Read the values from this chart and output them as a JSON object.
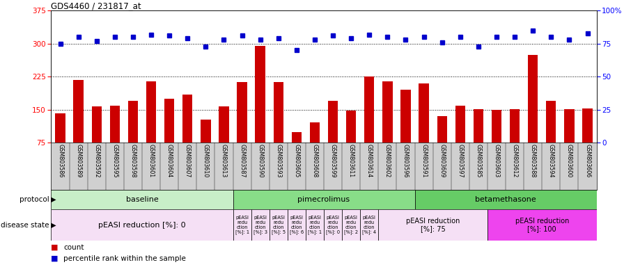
{
  "title": "GDS4460 / 231817_at",
  "samples": [
    "GSM803586",
    "GSM803589",
    "GSM803592",
    "GSM803595",
    "GSM803598",
    "GSM803601",
    "GSM803604",
    "GSM803607",
    "GSM803610",
    "GSM803613",
    "GSM803587",
    "GSM803590",
    "GSM803593",
    "GSM803605",
    "GSM803608",
    "GSM803599",
    "GSM803611",
    "GSM803614",
    "GSM803602",
    "GSM803596",
    "GSM803591",
    "GSM803609",
    "GSM803597",
    "GSM803585",
    "GSM803603",
    "GSM803612",
    "GSM803588",
    "GSM803594",
    "GSM803600",
    "GSM803606"
  ],
  "counts": [
    142,
    218,
    157,
    160,
    170,
    215,
    175,
    185,
    128,
    158,
    213,
    295,
    213,
    100,
    122,
    170,
    148,
    225,
    215,
    195,
    210,
    135,
    160,
    152,
    150,
    152,
    275,
    170,
    152,
    153
  ],
  "percentiles": [
    75,
    80,
    77,
    80,
    80,
    82,
    81,
    79,
    73,
    78,
    81,
    78,
    79,
    70,
    78,
    81,
    79,
    82,
    80,
    78,
    80,
    76,
    80,
    73,
    80,
    80,
    85,
    80,
    78,
    83
  ],
  "ylim_left": [
    75,
    375
  ],
  "ylim_right": [
    0,
    100
  ],
  "yticks_left": [
    75,
    150,
    225,
    300,
    375
  ],
  "yticks_right": [
    0,
    25,
    50,
    75,
    100
  ],
  "ytick_labels_right": [
    "0",
    "25",
    "50",
    "75",
    "100%"
  ],
  "hlines": [
    150,
    225,
    300
  ],
  "bar_color": "#cc0000",
  "dot_color": "#0000cc",
  "protocol_groups": [
    {
      "label": "baseline",
      "start": 0,
      "end": 10,
      "color": "#c8eec8"
    },
    {
      "label": "pimecrolimus",
      "start": 10,
      "end": 20,
      "color": "#88dd88"
    },
    {
      "label": "betamethasone",
      "start": 20,
      "end": 30,
      "color": "#66cc66"
    }
  ],
  "disease_groups": [
    {
      "label": "pEASI reduction [%]: 0",
      "start": 0,
      "end": 10,
      "color": "#f5e0f5"
    },
    {
      "label": "pEASI\nredu\nction\n[%]: 1",
      "start": 10,
      "end": 11,
      "color": "#f5e0f5"
    },
    {
      "label": "pEASI\nredu\nction\n[%]: 3",
      "start": 11,
      "end": 12,
      "color": "#f5e0f5"
    },
    {
      "label": "pEASI\nredu\nction\n[%]: 5",
      "start": 12,
      "end": 13,
      "color": "#f5e0f5"
    },
    {
      "label": "pEASI\nredu\nction\n[%]: 6",
      "start": 13,
      "end": 14,
      "color": "#f5e0f5"
    },
    {
      "label": "pEASI\nredu\nction\n[%]: 1",
      "start": 14,
      "end": 15,
      "color": "#f5e0f5"
    },
    {
      "label": "pEASI\nredu\nction\n[%]: 0",
      "start": 15,
      "end": 16,
      "color": "#f5e0f5"
    },
    {
      "label": "pEASI\nredu\nction\n[%]: 2",
      "start": 16,
      "end": 17,
      "color": "#f5e0f5"
    },
    {
      "label": "pEASI\nredu\nction\n[%]: 4",
      "start": 17,
      "end": 18,
      "color": "#f5e0f5"
    },
    {
      "label": "pEASI reduction\n[%]: 75",
      "start": 18,
      "end": 24,
      "color": "#f5e0f5"
    },
    {
      "label": "pEASI reduction\n[%]: 100",
      "start": 24,
      "end": 30,
      "color": "#ee44ee"
    }
  ],
  "sample_bg_color": "#d0d0d0",
  "plot_bg": "#ffffff"
}
